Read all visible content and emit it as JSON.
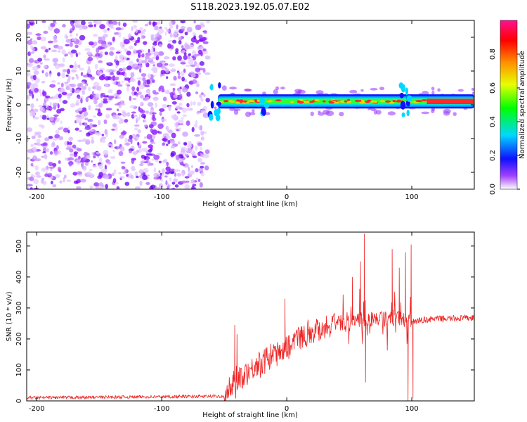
{
  "title": "S118.2023.192.05.07.E02",
  "chart_data": [
    {
      "type": "heatmap",
      "xlabel": "Height of straight line (km)",
      "ylabel": "Frequency (Hz)",
      "xlim": [
        -208,
        150
      ],
      "ylim": [
        -25,
        25
      ],
      "xticks": [
        -200,
        -100,
        0,
        100
      ],
      "yticks": [
        -20,
        -10,
        0,
        10,
        20
      ],
      "colorbar": {
        "label": "Normalized spectral amplitude",
        "range": [
          0,
          1
        ],
        "ticks": [
          0.0,
          0.2,
          0.4,
          0.6,
          0.8
        ]
      },
      "features": {
        "noise_region_x": [
          -208,
          -63
        ],
        "signal_line_frequency_hz": 1,
        "signal_start_x": -63
      }
    },
    {
      "type": "line",
      "xlabel": "Height of straight line (km)",
      "ylabel": "SNR (10 * v/v)",
      "xlim": [
        -208,
        150
      ],
      "ylim": [
        0,
        545
      ],
      "xticks": [
        -200,
        -100,
        0,
        100
      ],
      "yticks": [
        0,
        100,
        200,
        300,
        400,
        500
      ],
      "series": [
        {
          "color": "#ee2222",
          "envelope_x": [
            -208,
            -50,
            -45,
            -40,
            -30,
            -20,
            -10,
            0,
            10,
            20,
            30,
            40,
            50,
            60,
            70,
            80,
            90,
            100,
            110,
            120,
            130,
            140,
            150
          ],
          "envelope_y": [
            10,
            15,
            40,
            70,
            100,
            125,
            150,
            175,
            205,
            225,
            240,
            250,
            258,
            262,
            265,
            265,
            266,
            255,
            262,
            265,
            266,
            267,
            268
          ],
          "spikes": [
            {
              "x": -41.6,
              "y": 245
            },
            {
              "x": -39.8,
              "y": 215
            },
            {
              "x": -40.8,
              "y": 8
            },
            {
              "x": -1.5,
              "y": 330
            },
            {
              "x": 52.5,
              "y": 400
            },
            {
              "x": 59,
              "y": 450
            },
            {
              "x": 62,
              "y": 540
            },
            {
              "x": 63,
              "y": 60
            },
            {
              "x": 84.3,
              "y": 490
            },
            {
              "x": 90,
              "y": 430
            },
            {
              "x": 95,
              "y": 480
            },
            {
              "x": 97,
              "y": 0
            },
            {
              "x": 99.5,
              "y": 505
            },
            {
              "x": 101,
              "y": 10
            }
          ]
        }
      ]
    }
  ]
}
